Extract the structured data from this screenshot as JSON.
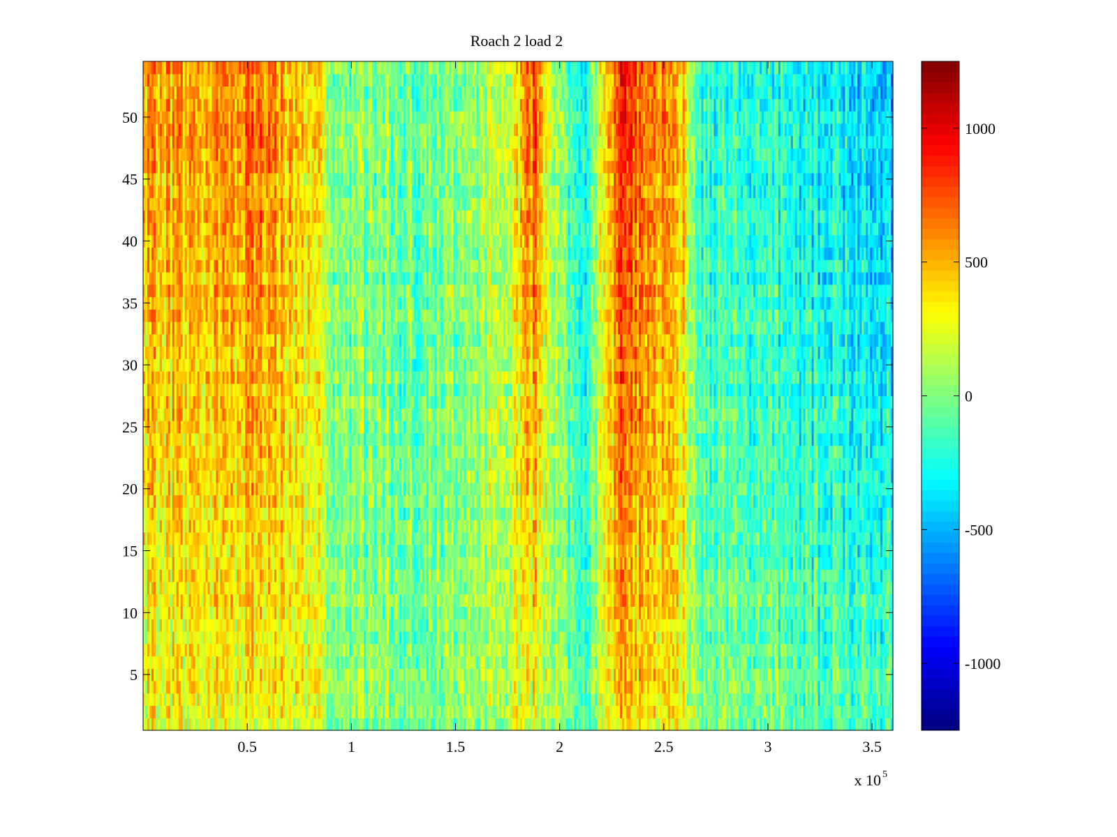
{
  "chart_data": {
    "type": "heatmap",
    "title": "Roach 2 load 2",
    "xlabel": "",
    "ylabel": "",
    "x_exponent_label": "x 10",
    "x_exponent": "5",
    "xlim": [
      0,
      3.6
    ],
    "ylim": [
      0.5,
      54.5
    ],
    "x_ticks": [
      0.5,
      1,
      1.5,
      2,
      2.5,
      3,
      3.5
    ],
    "x_tick_labels": [
      "0.5",
      "1",
      "1.5",
      "2",
      "2.5",
      "3",
      "3.5"
    ],
    "y_ticks": [
      5,
      10,
      15,
      20,
      25,
      30,
      35,
      40,
      45,
      50
    ],
    "y_tick_labels": [
      "5",
      "10",
      "15",
      "20",
      "25",
      "30",
      "35",
      "40",
      "45",
      "50"
    ],
    "rows": 54,
    "columns": 360,
    "colormap": "jet",
    "clim": [
      -1250,
      1250
    ],
    "colorbar_ticks": [
      1000,
      500,
      0,
      -500,
      -1000
    ],
    "colorbar_tick_labels": [
      "1000",
      "500",
      "0",
      "-500",
      "-1000"
    ],
    "grid": false,
    "band_profile": {
      "x": [
        0.0,
        0.3,
        0.5,
        0.62,
        0.68,
        0.7,
        0.85,
        0.9,
        1.2,
        1.5,
        1.78,
        1.85,
        1.9,
        1.95,
        2.05,
        2.1,
        2.15,
        2.22,
        2.3,
        2.4,
        2.5,
        2.6,
        2.65,
        3.0,
        3.3,
        3.6
      ],
      "mean_top": [
        550,
        500,
        650,
        700,
        500,
        420,
        420,
        30,
        -50,
        -20,
        200,
        720,
        700,
        200,
        -120,
        -450,
        -100,
        400,
        880,
        700,
        600,
        400,
        -200,
        -300,
        -350,
        -500
      ],
      "mean_bottom": [
        250,
        230,
        250,
        280,
        250,
        220,
        230,
        20,
        -20,
        -10,
        120,
        220,
        220,
        100,
        -70,
        -300,
        -60,
        250,
        400,
        320,
        300,
        230,
        20,
        -80,
        -120,
        -150
      ]
    },
    "noise_amplitude": 280
  }
}
